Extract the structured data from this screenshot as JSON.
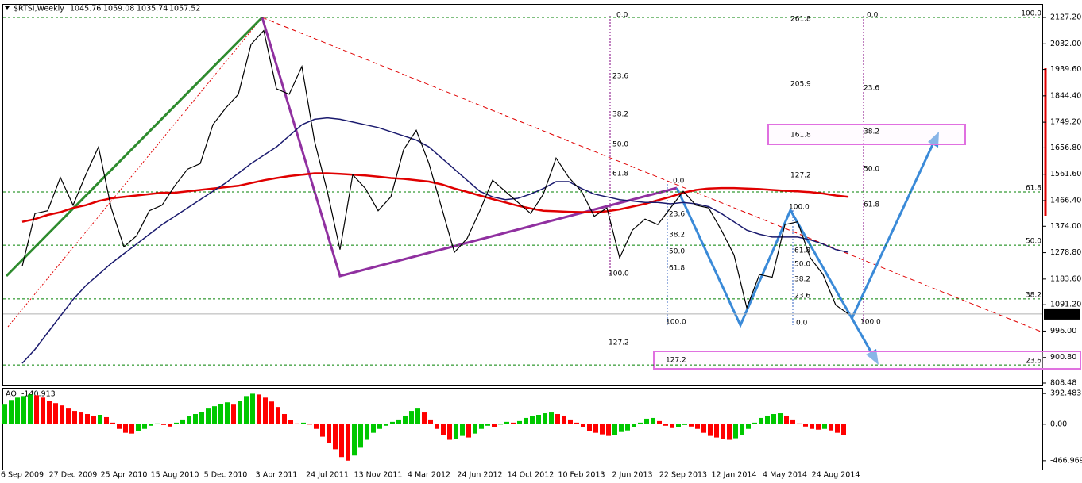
{
  "chart_data": [
    {
      "type": "line",
      "title": "$RTSI,Weekly",
      "ohlc": [
        1045.76,
        1059.08,
        1035.74,
        1057.52
      ],
      "categories": [
        "6 Sep 2009",
        null,
        null,
        null,
        "27 Dec 2009",
        null,
        null,
        null,
        "25 Apr 2010",
        null,
        null,
        null,
        "15 Aug 2010",
        null,
        null,
        null,
        "5 Dec 2010",
        null,
        null,
        null,
        "3 Apr 2011",
        null,
        null,
        null,
        "24 Jul 2011",
        null,
        null,
        null,
        "13 Nov 2011",
        null,
        null,
        null,
        "4 Mar 2012",
        null,
        null,
        null,
        "24 Jun 2012",
        null,
        null,
        null,
        "14 Oct 2012",
        null,
        null,
        null,
        "10 Feb 2013",
        null,
        null,
        null,
        "2 Jun 2013",
        null,
        null,
        null,
        "22 Sep 2013",
        null,
        null,
        null,
        "12 Jan 2014",
        null,
        null,
        null,
        "4 May 2014",
        null,
        null,
        null,
        "24 Aug 2014",
        null
      ],
      "series": [
        {
          "color": "#000000",
          "values": [
            1230,
            1420,
            1430,
            1550,
            1450,
            1560,
            1660,
            1440,
            1300,
            1340,
            1430,
            1450,
            1520,
            1580,
            1600,
            1740,
            1800,
            1850,
            2030,
            2080,
            1870,
            1850,
            1950,
            1680,
            1500,
            1290,
            1560,
            1510,
            1430,
            1480,
            1650,
            1720,
            1600,
            1440,
            1280,
            1330,
            1430,
            1540,
            1500,
            1460,
            1420,
            1490,
            1620,
            1550,
            1500,
            1410,
            1440,
            1260,
            1360,
            1400,
            1380,
            1440,
            1500,
            1450,
            1440,
            1360,
            1270,
            1080,
            1200,
            1190,
            1380,
            1390,
            1260,
            1200,
            1090,
            1057.52
          ]
        },
        {
          "color": "#e00000",
          "values": [
            1390,
            1400,
            1415,
            1425,
            1440,
            1450,
            1465,
            1475,
            1480,
            1485,
            1490,
            1495,
            1495,
            1500,
            1505,
            1510,
            1515,
            1520,
            1530,
            1540,
            1548,
            1555,
            1560,
            1565,
            1565,
            1563,
            1560,
            1557,
            1553,
            1548,
            1545,
            1540,
            1535,
            1525,
            1510,
            1498,
            1485,
            1472,
            1460,
            1448,
            1438,
            1430,
            1428,
            1426,
            1425,
            1425,
            1428,
            1435,
            1445,
            1455,
            1468,
            1480,
            1495,
            1505,
            1510,
            1512,
            1512,
            1510,
            1508,
            1505,
            1502,
            1500,
            1497,
            1492,
            1485,
            1480
          ]
        },
        {
          "color": "#1a1a6e",
          "values": [
            880,
            930,
            990,
            1050,
            1110,
            1160,
            1200,
            1240,
            1275,
            1310,
            1345,
            1380,
            1410,
            1440,
            1470,
            1500,
            1530,
            1565,
            1600,
            1630,
            1660,
            1700,
            1740,
            1760,
            1765,
            1760,
            1750,
            1740,
            1730,
            1715,
            1700,
            1685,
            1660,
            1620,
            1580,
            1540,
            1500,
            1480,
            1470,
            1475,
            1490,
            1510,
            1535,
            1535,
            1510,
            1490,
            1480,
            1470,
            1465,
            1460,
            1460,
            1455,
            1460,
            1455,
            1445,
            1420,
            1390,
            1360,
            1345,
            1335,
            1335,
            1335,
            1325,
            1310,
            1290,
            1280
          ]
        }
      ],
      "ylim": [
        797,
        2175.8
      ],
      "yticks": [
        {
          "value": 2127.2,
          "label": "2127.20"
        },
        {
          "value": 2032,
          "label": "2032.00"
        },
        {
          "value": 1939.6,
          "label": "1939.60"
        },
        {
          "value": 1844.4,
          "label": "1844.40"
        },
        {
          "value": 1749.2,
          "label": "1749.20"
        },
        {
          "value": 1656.8,
          "label": "1656.80"
        },
        {
          "value": 1561.6,
          "label": "1561.60"
        },
        {
          "value": 1466.4,
          "label": "1466.40"
        },
        {
          "value": 1374,
          "label": "1374.00"
        },
        {
          "value": 1278.8,
          "label": "1278.80"
        },
        {
          "value": 1183.6,
          "label": "1183.60"
        },
        {
          "value": 1091.2,
          "label": "1091.20"
        },
        {
          "value": 996,
          "label": "996.00"
        },
        {
          "value": 900.8,
          "label": "900.80"
        },
        {
          "value": 808.48,
          "label": "808.48"
        }
      ],
      "levels": [
        {
          "value": 2127.2,
          "label": "100.0"
        },
        {
          "value": 1498,
          "label": "61.8"
        },
        {
          "value": 1306,
          "label": "50.0"
        },
        {
          "value": 1112,
          "label": "38.2"
        },
        {
          "value": 874,
          "label": "23.6"
        }
      ],
      "levels_color": "#008000",
      "annotations": [
        "0.0",
        "23.6",
        "38.2",
        "50.0",
        "61.8",
        "100.0",
        "127.2",
        "0.0",
        "23.6",
        "38.2",
        "50.0",
        "61.8",
        "100.0",
        "127.2",
        "261.8",
        "205.9",
        "161.8",
        "127.2",
        "100.0",
        "61.8",
        "50.0",
        "38.2",
        "23.6",
        "0.0",
        "0.0",
        "23.6",
        "38.2",
        "50.0",
        "61.8",
        "100.0"
      ]
    },
    {
      "type": "bar",
      "title": "AO",
      "value": -140.913,
      "colors": {
        "up": "#00c800",
        "down": "#ff0000"
      },
      "values": [
        250,
        310,
        340,
        360,
        380,
        370,
        340,
        300,
        270,
        240,
        200,
        170,
        150,
        130,
        110,
        120,
        90,
        20,
        -60,
        -110,
        -120,
        -90,
        -60,
        -20,
        10,
        -10,
        -30,
        20,
        60,
        100,
        130,
        160,
        200,
        230,
        260,
        280,
        250,
        300,
        360,
        390,
        380,
        340,
        290,
        220,
        130,
        50,
        10,
        20,
        0,
        -60,
        -160,
        -240,
        -320,
        -420,
        -466,
        -400,
        -300,
        -200,
        -110,
        -60,
        -20,
        30,
        60,
        110,
        170,
        200,
        150,
        60,
        -60,
        -140,
        -200,
        -190,
        -150,
        -170,
        -120,
        -60,
        -20,
        -40,
        0,
        30,
        20,
        40,
        80,
        100,
        120,
        140,
        150,
        130,
        110,
        60,
        20,
        -40,
        -90,
        -110,
        -130,
        -150,
        -140,
        -100,
        -80,
        -40,
        20,
        70,
        80,
        40,
        -20,
        -50,
        -40,
        -10,
        -30,
        -60,
        -110,
        -150,
        -170,
        -190,
        -200,
        -180,
        -140,
        -60,
        20,
        80,
        110,
        130,
        140,
        110,
        60,
        10,
        -30,
        -60,
        -70,
        -60,
        -80,
        -110,
        -140.913
      ],
      "ylim": [
        -580,
        465
      ],
      "yticks": [
        392.483,
        {
          "value": 0,
          "label": "0.00"
        },
        -466.969
      ]
    }
  ]
}
